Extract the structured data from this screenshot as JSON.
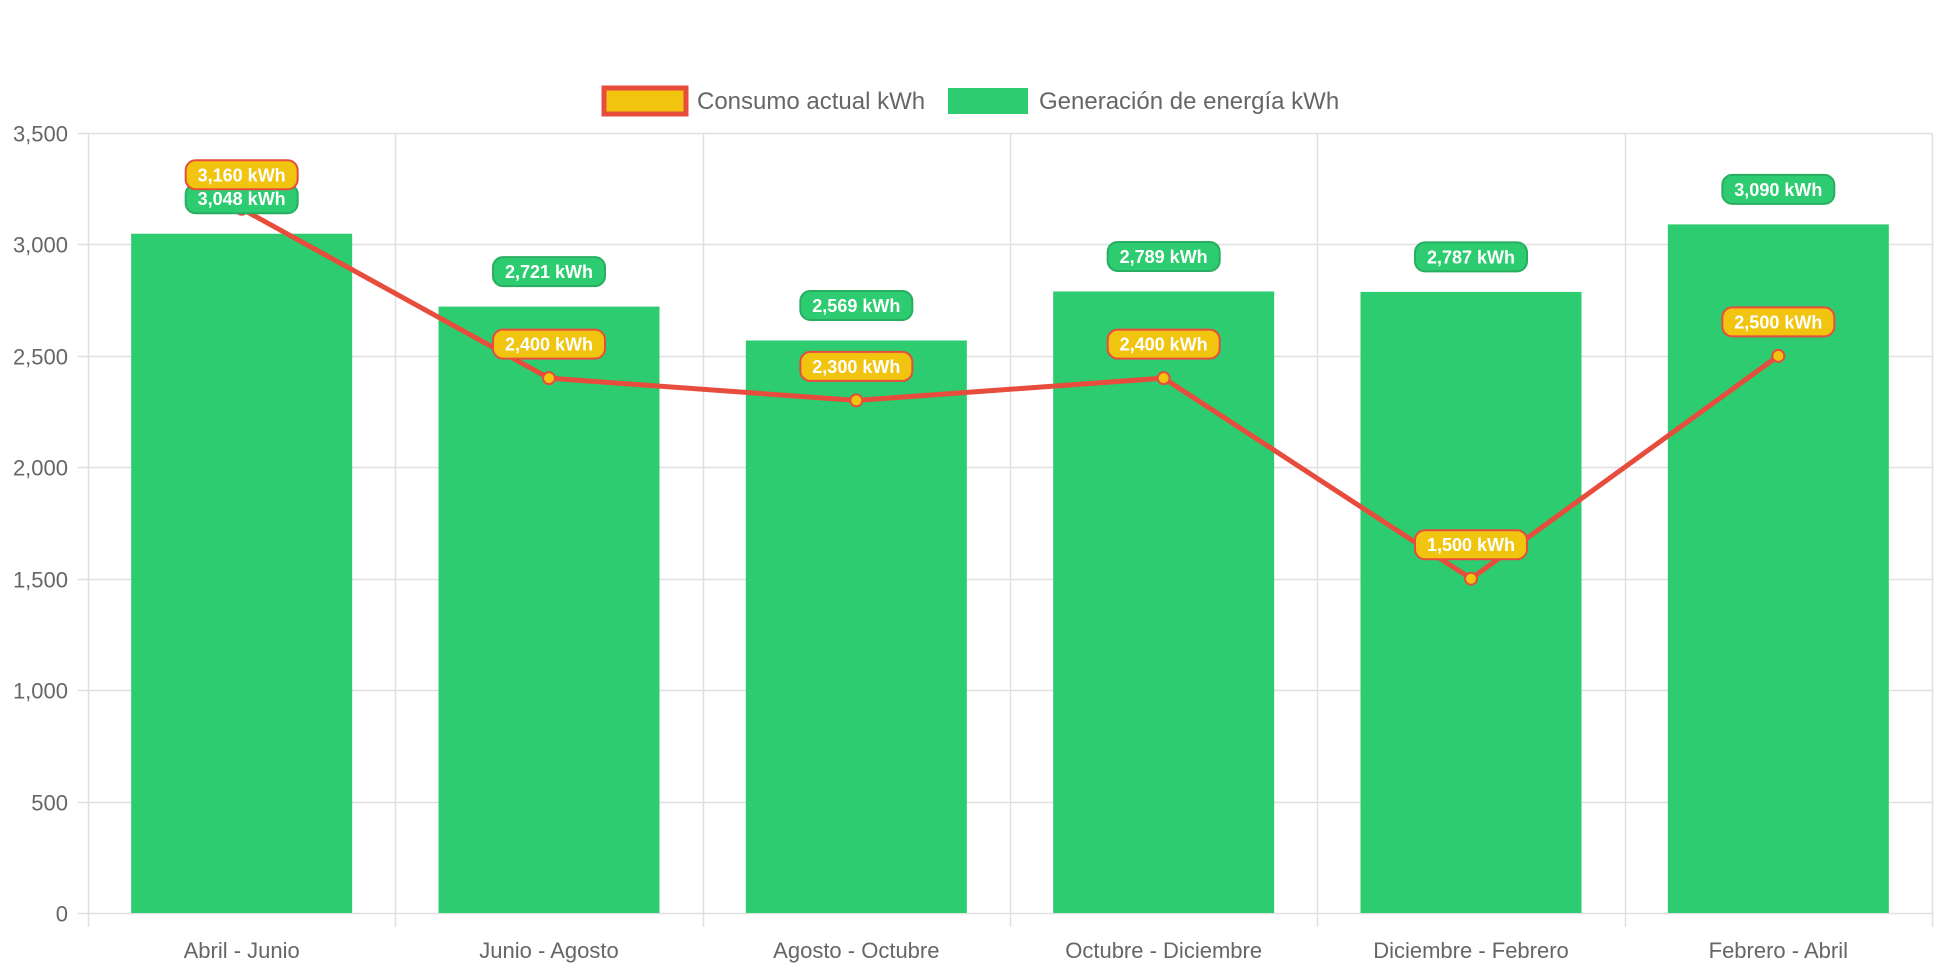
{
  "chart_data": {
    "type": "bar",
    "title": "",
    "xlabel": "",
    "ylabel": "",
    "ylim": [
      0,
      3500
    ],
    "y_ticks": [
      0,
      500,
      1000,
      1500,
      2000,
      2500,
      3000,
      3500
    ],
    "y_tick_labels": [
      "0",
      "500",
      "1,000",
      "1,500",
      "2,000",
      "2,500",
      "3,000",
      "3,500"
    ],
    "grid": true,
    "legend_position": "top-center",
    "categories": [
      "Abril - Junio",
      "Junio - Agosto",
      "Agosto - Octubre",
      "Octubre - Diciembre",
      "Diciembre - Febrero",
      "Febrero - Abril"
    ],
    "series": [
      {
        "name": "Consumo actual kWh",
        "type": "line",
        "values": [
          3160,
          2400,
          2300,
          2400,
          1500,
          2500
        ],
        "labels": [
          "3,160 kWh",
          "2,400 kWh",
          "2,300 kWh",
          "2,400 kWh",
          "1,500 kWh",
          "2,500 kWh"
        ],
        "color": "#e74c3c",
        "fill_color": "#f1c40f"
      },
      {
        "name": "Generación de energía kWh",
        "type": "bar",
        "values": [
          3048,
          2721,
          2569,
          2789,
          2787,
          3090
        ],
        "labels": [
          "3,048 kWh",
          "2,721 kWh",
          "2,569 kWh",
          "2,789 kWh",
          "2,787 kWh",
          "3,090 kWh"
        ],
        "color": "#2ecc71",
        "label_border": "#27ae60"
      }
    ]
  },
  "colors": {
    "grid": "#e0e0e0",
    "tick_text": "#666666"
  }
}
